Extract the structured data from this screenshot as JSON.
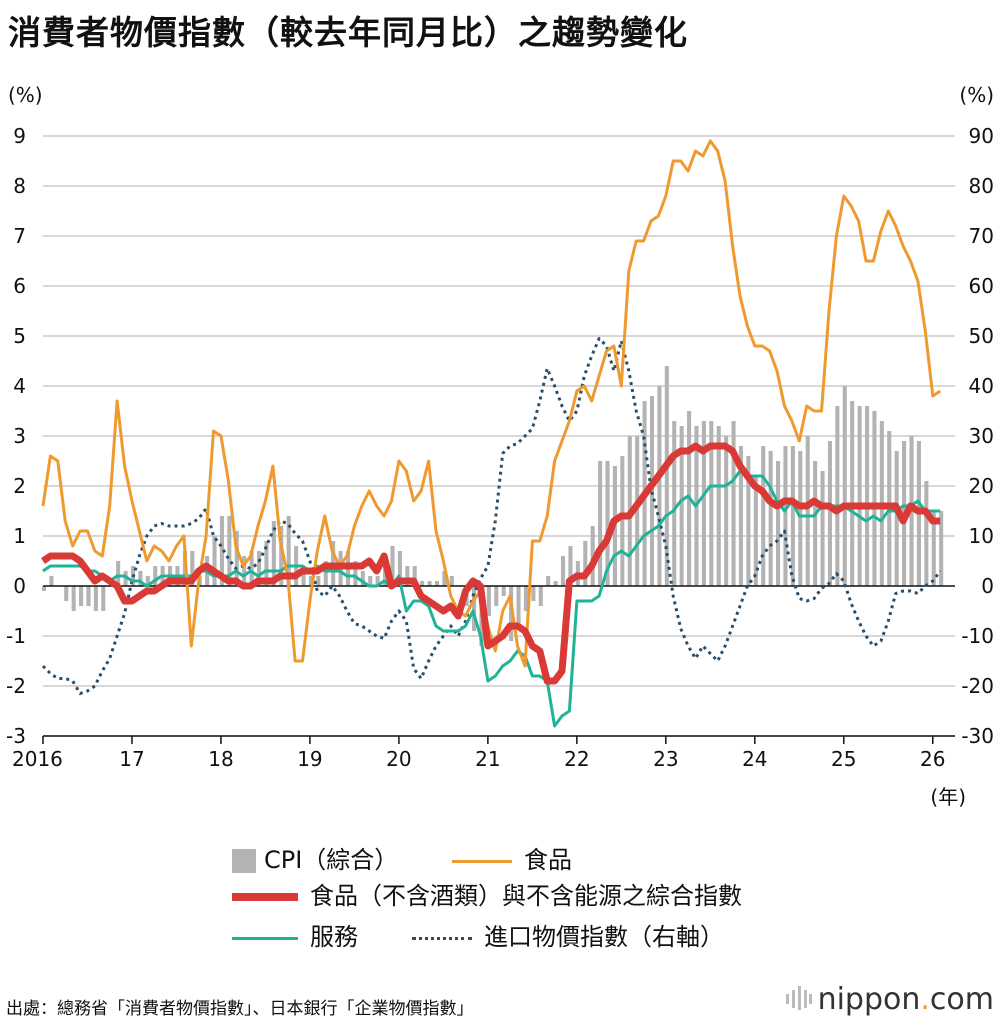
{
  "title": "消費者物價指數（較去年同月比）之趨勢變化",
  "source": "出處：總務省「消費者物價指數」、日本銀行「企業物價指數」",
  "brand": {
    "name": "nippon",
    "dot": ".",
    "tld": "com"
  },
  "colors": {
    "cpi": "#b3b3b3",
    "food": "#ef9a2f",
    "core": "#d93a36",
    "services": "#1fb398",
    "import": "#2a4f6b",
    "grid": "#cccccc"
  },
  "chart_data": {
    "type": "line",
    "title": "消費者物價指數（較去年同月比）之趨勢變化",
    "left_unit": "(%)",
    "right_unit": "(%)",
    "x_unit": "(年)",
    "ylim_left": [
      -3,
      9
    ],
    "ylim_right": [
      -30,
      90
    ],
    "yticks_left": [
      "9",
      "8",
      "7",
      "6",
      "5",
      "4",
      "3",
      "2",
      "1",
      "0",
      "-1",
      "-2",
      "-3"
    ],
    "yticks_right": [
      "90",
      "80",
      "70",
      "60",
      "50",
      "40",
      "30",
      "20",
      "10",
      "0",
      "-10",
      "-20",
      "-30"
    ],
    "xticks": [
      "2016",
      "17",
      "18",
      "19",
      "20",
      "21",
      "22",
      "23",
      "24",
      "25",
      "26"
    ],
    "x_start": 2016.0,
    "x_end": 2026.25,
    "legend": {
      "cpi": "CPI（綜合）",
      "food": "食品",
      "core": "食品（不含酒類）與不含能源之綜合指數",
      "services": "服務",
      "import": "進口物價指數（右軸）"
    },
    "series": [
      {
        "name": "CPI（綜合）",
        "kind": "bar",
        "axis": "left",
        "values": [
          -0.1,
          0.2,
          0.0,
          -0.3,
          -0.5,
          -0.4,
          -0.4,
          -0.5,
          -0.5,
          0.1,
          0.5,
          0.3,
          0.4,
          0.3,
          0.2,
          0.4,
          0.4,
          0.4,
          0.4,
          0.7,
          0.7,
          0.2,
          0.6,
          1.0,
          1.4,
          1.4,
          1.1,
          0.6,
          0.7,
          0.7,
          0.9,
          1.3,
          1.2,
          1.4,
          0.8,
          0.3,
          0.2,
          0.2,
          0.5,
          0.9,
          0.7,
          0.7,
          0.5,
          0.3,
          0.2,
          0.2,
          0.5,
          0.8,
          0.7,
          0.4,
          0.4,
          0.1,
          0.1,
          0.1,
          0.3,
          0.2,
          0.0,
          -0.4,
          -0.9,
          -1.2,
          -0.6,
          -0.4,
          -0.2,
          -1.1,
          -0.8,
          -0.5,
          -0.3,
          -0.4,
          0.2,
          0.1,
          0.6,
          0.8,
          0.5,
          0.9,
          1.2,
          2.5,
          2.5,
          2.4,
          2.6,
          3.0,
          3.0,
          3.7,
          3.8,
          4.0,
          4.4,
          3.3,
          3.2,
          3.5,
          3.2,
          3.3,
          3.3,
          3.2,
          3.0,
          3.3,
          2.8,
          2.6,
          2.2,
          2.8,
          2.7,
          2.5,
          2.8,
          2.8,
          2.7,
          3.0,
          2.5,
          2.3,
          2.9,
          3.6,
          4.0,
          3.7,
          3.6,
          3.6,
          3.5,
          3.3,
          3.1,
          2.7,
          2.9,
          3.0,
          2.9,
          2.1,
          1.5,
          1.5
        ]
      },
      {
        "name": "食品",
        "kind": "line",
        "axis": "left",
        "values": [
          1.6,
          2.6,
          2.5,
          1.3,
          0.8,
          1.1,
          1.1,
          0.7,
          0.6,
          1.6,
          3.7,
          2.4,
          1.7,
          1.1,
          0.5,
          0.8,
          0.7,
          0.5,
          0.8,
          1.0,
          -1.2,
          0.1,
          1.0,
          3.1,
          3.0,
          2.1,
          0.8,
          0.4,
          0.6,
          1.2,
          1.7,
          2.4,
          0.9,
          0.2,
          -1.5,
          -1.5,
          -0.3,
          0.7,
          1.4,
          0.7,
          0.4,
          0.6,
          1.2,
          1.6,
          1.9,
          1.6,
          1.4,
          1.7,
          2.5,
          2.3,
          1.7,
          1.9,
          2.5,
          1.1,
          0.5,
          -0.2,
          -0.5,
          -0.6,
          -0.3,
          -0.1,
          -0.8,
          -1.3,
          -0.5,
          -0.2,
          -1.2,
          -1.6,
          0.9,
          0.9,
          1.4,
          2.5,
          2.9,
          3.3,
          3.9,
          4.0,
          3.7,
          4.2,
          4.7,
          4.8,
          4.0,
          6.3,
          6.9,
          6.9,
          7.3,
          7.4,
          7.8,
          8.5,
          8.5,
          8.3,
          8.7,
          8.6,
          8.9,
          8.7,
          8.1,
          6.8,
          5.8,
          5.2,
          4.8,
          4.8,
          4.7,
          4.3,
          3.6,
          3.3,
          2.9,
          3.6,
          3.5,
          3.5,
          5.5,
          7.0,
          7.8,
          7.6,
          7.3,
          6.5,
          6.5,
          7.1,
          7.5,
          7.2,
          6.8,
          6.5,
          6.1,
          5.1,
          3.8,
          3.9
        ]
      },
      {
        "name": "食品（不含酒類）與不含能源之綜合指數",
        "kind": "line",
        "axis": "left",
        "values": [
          0.5,
          0.6,
          0.6,
          0.6,
          0.6,
          0.5,
          0.3,
          0.1,
          0.2,
          0.1,
          0.0,
          -0.3,
          -0.3,
          -0.2,
          -0.1,
          -0.1,
          0.0,
          0.1,
          0.1,
          0.1,
          0.1,
          0.3,
          0.4,
          0.3,
          0.2,
          0.1,
          0.1,
          0.0,
          0.0,
          0.1,
          0.1,
          0.1,
          0.2,
          0.2,
          0.2,
          0.3,
          0.3,
          0.3,
          0.4,
          0.4,
          0.4,
          0.4,
          0.4,
          0.4,
          0.5,
          0.3,
          0.6,
          0.0,
          0.1,
          0.1,
          0.1,
          -0.2,
          -0.3,
          -0.4,
          -0.5,
          -0.4,
          -0.6,
          -0.1,
          0.1,
          0.0,
          -1.2,
          -1.1,
          -1.0,
          -0.8,
          -0.8,
          -0.9,
          -1.2,
          -1.3,
          -1.9,
          -1.9,
          -1.7,
          0.1,
          0.2,
          0.2,
          0.4,
          0.7,
          0.9,
          1.3,
          1.4,
          1.4,
          1.6,
          1.8,
          2.0,
          2.2,
          2.4,
          2.6,
          2.7,
          2.7,
          2.8,
          2.7,
          2.8,
          2.8,
          2.8,
          2.7,
          2.4,
          2.2,
          2.0,
          1.9,
          1.7,
          1.6,
          1.7,
          1.7,
          1.6,
          1.6,
          1.7,
          1.6,
          1.6,
          1.5,
          1.6,
          1.6,
          1.6,
          1.6,
          1.6,
          1.6,
          1.6,
          1.6,
          1.3,
          1.6,
          1.5,
          1.5,
          1.3,
          1.3
        ]
      },
      {
        "name": "服務",
        "kind": "line",
        "axis": "left",
        "values": [
          0.3,
          0.4,
          0.4,
          0.4,
          0.4,
          0.4,
          0.3,
          0.3,
          0.2,
          0.1,
          0.2,
          0.2,
          0.1,
          0.1,
          0.0,
          0.1,
          0.2,
          0.2,
          0.2,
          0.2,
          0.2,
          0.3,
          0.3,
          0.2,
          0.2,
          0.2,
          0.3,
          0.2,
          0.3,
          0.2,
          0.3,
          0.3,
          0.3,
          0.4,
          0.4,
          0.4,
          0.3,
          0.4,
          0.3,
          0.3,
          0.3,
          0.2,
          0.2,
          0.1,
          0.0,
          0.0,
          0.1,
          0.0,
          0.2,
          -0.5,
          -0.3,
          -0.3,
          -0.4,
          -0.8,
          -0.9,
          -0.9,
          -0.9,
          -0.8,
          -0.5,
          -1.0,
          -1.9,
          -1.8,
          -1.6,
          -1.5,
          -1.3,
          -1.4,
          -1.8,
          -1.8,
          -1.9,
          -2.8,
          -2.6,
          -2.5,
          -0.3,
          -0.3,
          -0.3,
          -0.2,
          0.3,
          0.6,
          0.7,
          0.6,
          0.8,
          1.0,
          1.1,
          1.2,
          1.4,
          1.5,
          1.7,
          1.8,
          1.6,
          1.8,
          2.0,
          2.0,
          2.0,
          2.1,
          2.3,
          2.2,
          2.2,
          2.2,
          2.0,
          1.7,
          1.5,
          1.7,
          1.4,
          1.4,
          1.4,
          1.6,
          1.6,
          1.6,
          1.6,
          1.5,
          1.4,
          1.3,
          1.4,
          1.3,
          1.5,
          1.5,
          1.6,
          1.6,
          1.7,
          1.5,
          1.5,
          1.5
        ]
      },
      {
        "name": "進口物價指數（右軸）",
        "kind": "line",
        "axis": "right",
        "dashed": true,
        "values": [
          -16.0,
          -17.5,
          -18.5,
          -18.5,
          -19.0,
          -21.5,
          -21.0,
          -20.0,
          -17.0,
          -14.5,
          -10.0,
          -5.5,
          1.0,
          6.0,
          10.0,
          12.0,
          12.5,
          12.0,
          12.0,
          12.0,
          12.5,
          13.5,
          15.5,
          10.0,
          8.0,
          5.5,
          3.5,
          4.0,
          3.5,
          4.5,
          7.5,
          11.0,
          13.0,
          12.5,
          10.5,
          9.0,
          5.0,
          -1.0,
          -2.0,
          0.0,
          -2.0,
          -5.0,
          -7.5,
          -8.0,
          -9.0,
          -10.0,
          -10.5,
          -7.0,
          -5.0,
          -7.0,
          -16.5,
          -18.5,
          -15.0,
          -12.0,
          -10.0,
          -8.0,
          -10.0,
          -7.0,
          -2.0,
          1.5,
          4.0,
          13.0,
          26.5,
          28.0,
          28.5,
          30.0,
          31.5,
          37.0,
          43.5,
          40.0,
          36.0,
          33.0,
          35.0,
          42.0,
          46.0,
          49.5,
          48.0,
          43.0,
          49.0,
          43.0,
          35.0,
          30.0,
          19.5,
          14.0,
          8.0,
          -2.0,
          -8.5,
          -12.0,
          -14.5,
          -12.0,
          -13.5,
          -15.0,
          -12.0,
          -8.0,
          -4.0,
          0.0,
          2.0,
          6.0,
          8.0,
          9.0,
          11.0,
          2.0,
          -2.5,
          -3.0,
          -2.5,
          -0.5,
          0.5,
          2.5,
          1.0,
          -3.5,
          -7.0,
          -10.0,
          -12.0,
          -11.0,
          -7.0,
          -1.5,
          -1.0,
          -1.0,
          -1.5,
          0.0,
          1.0,
          3.0
        ]
      }
    ]
  }
}
